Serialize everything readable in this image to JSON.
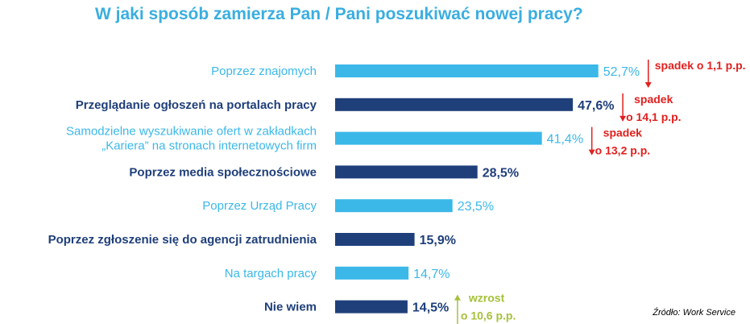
{
  "title": "W jaki sposób zamierza Pan / Pani poszukiwać nowej pracy?",
  "source": "Źródło: Work Service",
  "colors": {
    "light": "#3bb8e8",
    "dark": "#1f3f7a",
    "decrease": "#e0201f",
    "increase": "#a5c13a"
  },
  "chart_data": {
    "type": "bar",
    "orientation": "horizontal",
    "title": "W jaki sposób zamierza Pan / Pani poszukiwać nowej pracy?",
    "xlim": [
      0,
      60
    ],
    "grid": false,
    "categories": [
      {
        "lines": [
          "Poprzez znajomych"
        ],
        "value": 52.7,
        "label": "52,7%",
        "style": "light"
      },
      {
        "lines": [
          "Przeglądanie ogłoszeń na portalach pracy"
        ],
        "value": 47.6,
        "label": "47,6%",
        "style": "dark"
      },
      {
        "lines": [
          "Samodzielne wyszukiwanie ofert w zakładkach",
          "„Kariera” na stronach internetowych firm"
        ],
        "value": 41.4,
        "label": "41,4%",
        "style": "light"
      },
      {
        "lines": [
          "Poprzez media społecznościowe"
        ],
        "value": 28.5,
        "label": "28,5%",
        "style": "dark"
      },
      {
        "lines": [
          "Poprzez Urząd Pracy"
        ],
        "value": 23.5,
        "label": "23,5%",
        "style": "light"
      },
      {
        "lines": [
          "Poprzez zgłoszenie się do agencji zatrudnienia"
        ],
        "value": 15.9,
        "label": "15,9%",
        "style": "dark"
      },
      {
        "lines": [
          "Na targach pracy"
        ],
        "value": 14.7,
        "label": "14,7%",
        "style": "light"
      },
      {
        "lines": [
          "Nie wiem"
        ],
        "value": 14.5,
        "label": "14,5%",
        "style": "dark"
      }
    ],
    "annotations": [
      {
        "index": 0,
        "direction": "down",
        "lines": [
          "spadek o 1,1 p.p."
        ]
      },
      {
        "index": 1,
        "direction": "down",
        "lines": [
          "spadek",
          "o 14,1 p.p."
        ]
      },
      {
        "index": 2,
        "direction": "down",
        "lines": [
          "spadek",
          "o 13,2 p.p."
        ]
      },
      {
        "index": 7,
        "direction": "up",
        "lines": [
          "wzrost",
          "o 10,6 p.p."
        ]
      }
    ]
  }
}
